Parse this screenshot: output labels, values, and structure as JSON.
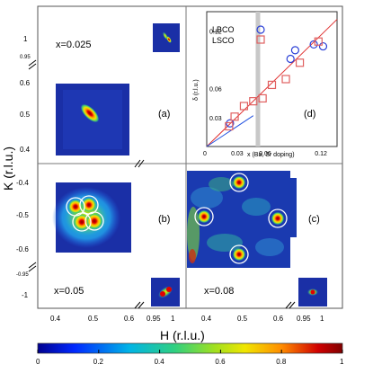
{
  "figure": {
    "ylabel": "K (r.l.u.)",
    "xlabel": "H (r.l.u.)",
    "colorbar_ticks": [
      "0",
      "0.2",
      "0.4",
      "0.6",
      "0.8",
      "1"
    ],
    "colors": {
      "map_background": "#1a2fa6",
      "colorbar_stops": [
        "#00008f",
        "#0050ff",
        "#00c8c8",
        "#5ad23c",
        "#f0e600",
        "#ff8c00",
        "#cc0000",
        "#800000"
      ],
      "lbco_marker": "#2a3fd6",
      "lsco_marker": "#e06060",
      "fit_line_red": "#e03030",
      "fit_line_blue": "#2050e0"
    }
  },
  "panels": {
    "a": {
      "label": "(a)",
      "doping": "x=0.025"
    },
    "b": {
      "label": "(b)",
      "doping": "x=0.05"
    },
    "c": {
      "label": "(c)",
      "doping": "x=0.08"
    },
    "d": {
      "label": "(d)"
    }
  },
  "axes_ticks": {
    "left_top": [
      "1",
      "0.95",
      "0.6",
      "0.5",
      "0.4"
    ],
    "left_bottom": [
      "-0.4",
      "-0.5",
      "-0.6",
      "-0.95",
      "-1"
    ],
    "bottom_left": [
      "0.4",
      "0.5",
      "0.6"
    ],
    "bottom_mid": [
      "0.95",
      "1"
    ],
    "bottom_right": [
      "0.4",
      "0.5",
      "0.6"
    ],
    "bottom_far": [
      "0.95",
      "1"
    ]
  },
  "chart_data": {
    "type": "scatter",
    "xlabel": "x (Ba, Sr doping)",
    "ylabel": "δ (r.l.u.)",
    "x_ticks": [
      "0",
      "0.03",
      "0.06",
      "0.12"
    ],
    "y_ticks": [
      "0.03",
      "0.06",
      "0.12"
    ],
    "xlim": [
      0,
      0.14
    ],
    "ylim": [
      0,
      0.14
    ],
    "shaded_x": 0.055,
    "series": [
      {
        "name": "LBCO",
        "marker": "circle",
        "points": [
          [
            0.025,
            0.024
          ],
          [
            0.09,
            0.091
          ],
          [
            0.095,
            0.1
          ],
          [
            0.115,
            0.106
          ],
          [
            0.125,
            0.104
          ]
        ]
      },
      {
        "name": "LSCO",
        "marker": "square",
        "points": [
          [
            0.024,
            0.021
          ],
          [
            0.03,
            0.031
          ],
          [
            0.04,
            0.042
          ],
          [
            0.05,
            0.047
          ],
          [
            0.06,
            0.05
          ],
          [
            0.07,
            0.064
          ],
          [
            0.085,
            0.07
          ],
          [
            0.1,
            0.087
          ],
          [
            0.12,
            0.109
          ]
        ]
      }
    ],
    "lines": [
      {
        "name": "red",
        "points": [
          [
            0.0,
            0.0
          ],
          [
            0.14,
            0.132
          ]
        ]
      },
      {
        "name": "blue",
        "points": [
          [
            0.0,
            0.0
          ],
          [
            0.05,
            0.032
          ]
        ]
      }
    ]
  }
}
